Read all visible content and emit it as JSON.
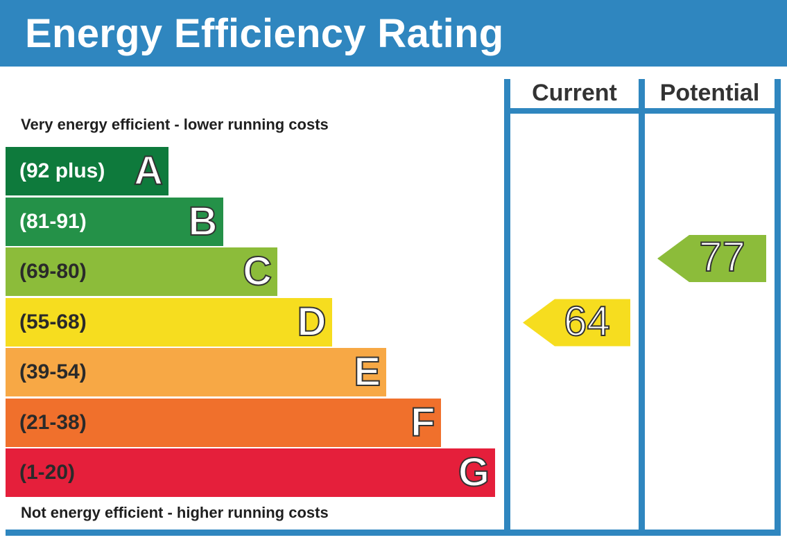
{
  "title": "Energy Efficiency Rating",
  "top_caption": "Very energy efficient - lower running costs",
  "bottom_caption": "Not energy efficient - higher running costs",
  "columns": {
    "current": "Current",
    "potential": "Potential"
  },
  "colors": {
    "frame": "#2f86bf",
    "A": "#0e7a3c",
    "B": "#249148",
    "C": "#8cbc3a",
    "D": "#f6dd1f",
    "E": "#f7a845",
    "F": "#f0702c",
    "G": "#e51f3b"
  },
  "chart_data": {
    "type": "bar",
    "bands": [
      {
        "letter": "A",
        "range": "(92 plus)",
        "min": 92,
        "max": 100
      },
      {
        "letter": "B",
        "range": "(81-91)",
        "min": 81,
        "max": 91
      },
      {
        "letter": "C",
        "range": "(69-80)",
        "min": 69,
        "max": 80
      },
      {
        "letter": "D",
        "range": "(55-68)",
        "min": 55,
        "max": 68
      },
      {
        "letter": "E",
        "range": "(39-54)",
        "min": 39,
        "max": 54
      },
      {
        "letter": "F",
        "range": "(21-38)",
        "min": 21,
        "max": 38
      },
      {
        "letter": "G",
        "range": "(1-20)",
        "min": 1,
        "max": 20
      }
    ],
    "current": {
      "value": "64",
      "band": "D"
    },
    "potential": {
      "value": "77",
      "band": "C"
    }
  }
}
